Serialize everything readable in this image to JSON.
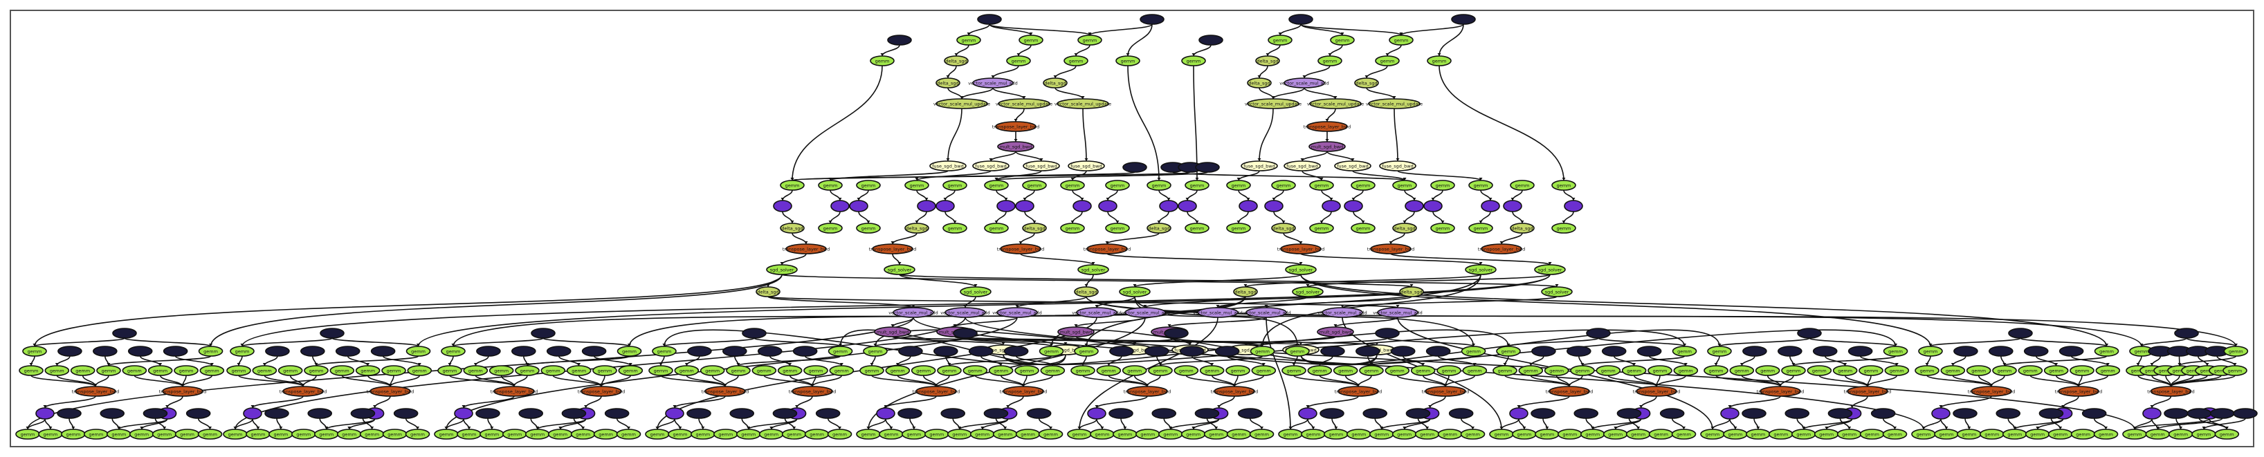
{
  "diagram": {
    "kind": "computation-graph",
    "colors": {
      "param": "#1b1b3a",
      "op": "#a0e84a",
      "op_alt": "#c6d86a",
      "reduce": "#ffffcc",
      "tensor_op": "#6b2fd0",
      "lavender": "#b48ce0",
      "mauve": "#9b5aa8",
      "orange": "#c4531c",
      "background": "#ffffff",
      "edge": "#111111"
    },
    "labels": {
      "op": "gemm",
      "delta": "delta_sgd",
      "vector_mul": "vector_scale_mul_add",
      "update": "vector_scale_mul_update",
      "mult": "mult_sgd_bwd",
      "trans": "transpose_layer_bwd",
      "reduce": "fuse_sgd_bwd",
      "sgd": "sgd_solver",
      "param": ""
    }
  }
}
